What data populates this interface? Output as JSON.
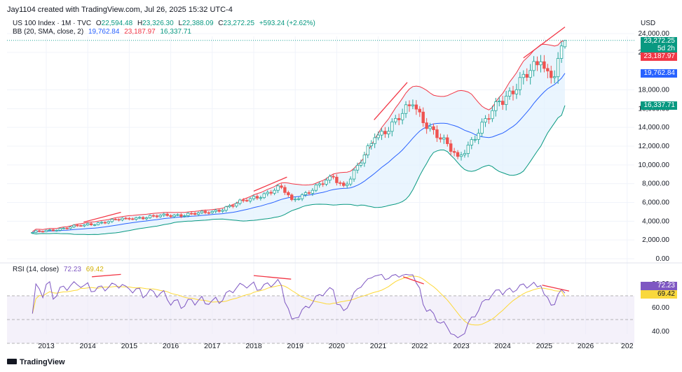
{
  "header": {
    "author_line": "Jay1104 created with TradingView.com, Jul 26, 2025 15:32 UTC-4"
  },
  "symbol": {
    "title": "US 100 Index · 1M · TVC",
    "o_label": "O",
    "o_value": "22,594.48",
    "h_label": "H",
    "h_value": "23,326.30",
    "l_label": "L",
    "l_value": "22,388.09",
    "c_label": "C",
    "c_value": "23,272.25",
    "change": "+593.24 (+2.62%)"
  },
  "bb_legend": {
    "label": "BB (20, SMA, close, 2)",
    "basis": "19,762.84",
    "upper": "23,187.97",
    "lower": "16,337.71"
  },
  "rsi_legend": {
    "label": "RSI (14, close)",
    "rsi": "72.23",
    "ma": "69.42"
  },
  "price_axis": {
    "currency": "USD",
    "ticks": [
      "24,000.00",
      "22,000.00",
      "18,000.00",
      "16,000.00",
      "14,000.00",
      "12,000.00",
      "10,000.00",
      "8,000.00",
      "6,000.00",
      "4,000.00",
      "2,000.00",
      "0.00"
    ]
  },
  "price_tags": {
    "last": "23,272.25",
    "countdown": "5d 2h",
    "upper": "23,187.97",
    "basis": "19,762.84",
    "lower": "16,337.71"
  },
  "rsi_axis": {
    "ticks": [
      "80.00",
      "60.00",
      "40.00"
    ],
    "tag_rsi": "72.23",
    "tag_ma": "69.42"
  },
  "time_axis": {
    "ticks": [
      "2013",
      "2014",
      "2015",
      "2016",
      "2017",
      "2018",
      "2019",
      "2020",
      "2021",
      "2022",
      "2023",
      "2024",
      "2025",
      "2026",
      "202"
    ]
  },
  "footer": {
    "brand": "TradingView"
  },
  "colors": {
    "up": "#26a69a",
    "down": "#ef5350",
    "upper_band": "#f23645",
    "basis": "#2962ff",
    "lower_band": "#089981",
    "band_fill": "#e3f2fd",
    "rsi_line": "#7e57c2",
    "rsi_ma": "#fdd835",
    "divergence": "#f23645"
  },
  "chart_data": [
    {
      "type": "candlestick",
      "title": "US 100 Index · 1M · TVC",
      "x_range": [
        "2012-08",
        "2025-07"
      ],
      "y_axis_label": "USD",
      "ylim": [
        0,
        24000
      ],
      "key_points": [
        {
          "date": "2012-09",
          "close": 2800
        },
        {
          "date": "2013-12",
          "close": 3600
        },
        {
          "date": "2014-12",
          "close": 4300
        },
        {
          "date": "2015-12",
          "close": 4600
        },
        {
          "date": "2016-12",
          "close": 4900
        },
        {
          "date": "2017-12",
          "close": 6400
        },
        {
          "date": "2018-09",
          "close": 7600
        },
        {
          "date": "2018-12",
          "close": 6300
        },
        {
          "date": "2019-12",
          "close": 8700
        },
        {
          "date": "2020-03",
          "close": 7800
        },
        {
          "date": "2020-12",
          "close": 12900
        },
        {
          "date": "2021-11",
          "close": 16400
        },
        {
          "date": "2022-12",
          "close": 10900
        },
        {
          "date": "2023-12",
          "close": 16800
        },
        {
          "date": "2024-12",
          "close": 21000
        },
        {
          "date": "2025-03",
          "close": 19300
        },
        {
          "date": "2025-04",
          "close": 19400
        },
        {
          "date": "2025-06",
          "close": 22680
        },
        {
          "date": "2025-07",
          "open": 22594.48,
          "high": 23326.3,
          "low": 22388.09,
          "close": 23272.25
        }
      ],
      "bollinger_bands": {
        "label": "BB (20, SMA, close, 2)",
        "basis_last": 19762.84,
        "upper_last": 23187.97,
        "lower_last": 16337.71
      },
      "grid": true
    },
    {
      "type": "line",
      "title": "RSI (14, close)",
      "ylim": [
        30,
        90
      ],
      "guides": [
        70,
        50,
        30
      ],
      "series": [
        {
          "name": "RSI",
          "last": 72.23
        },
        {
          "name": "RSI MA",
          "last": 69.42
        }
      ]
    }
  ]
}
